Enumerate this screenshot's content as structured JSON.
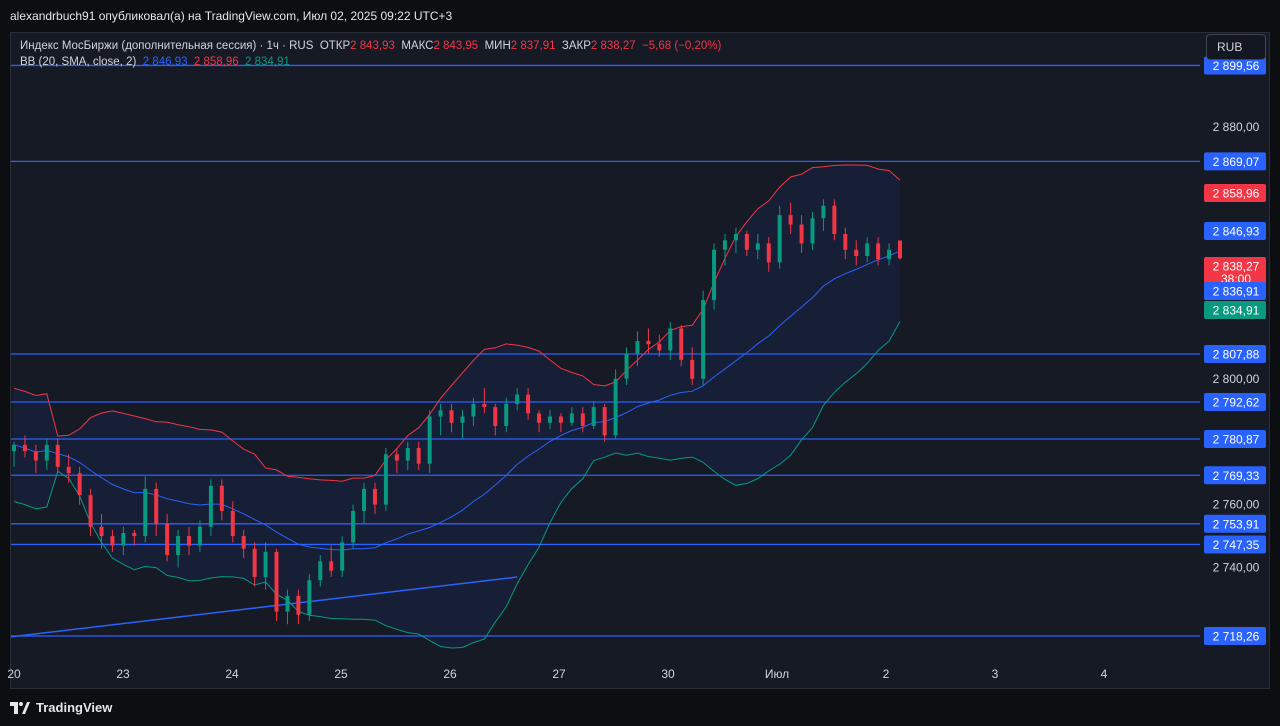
{
  "header": {
    "publisher_line": "alexandrbuch91 опубликовал(а) на TradingView.com, Июл 02, 2025 09:22 UTC+3"
  },
  "legend": {
    "symbol": "Индекс МосБиржи (дополнительная сессия) · 1ч · RUS",
    "open_label": "ОТКР",
    "open_value": "2 843,93",
    "high_label": "МАКС",
    "high_value": "2 843,95",
    "low_label": "МИН",
    "low_value": "2 837,91",
    "close_label": "ЗАКР",
    "close_value": "2 838,27",
    "change_value": "−5,68 (−0,20%)",
    "bb_label": "BB (20, SMA, close, 2)",
    "bb_basis": "2 846,93",
    "bb_upper": "2 858,96",
    "bb_lower": "2 834,91"
  },
  "currency_button": "RUB",
  "footer": {
    "brand": "TradingView"
  },
  "colors": {
    "background": "#161a25",
    "up": "#089981",
    "down": "#f23645",
    "basis": "#2962ff",
    "upper_band": "#f23645",
    "lower_band": "#089981",
    "level_lines": "#2962ff"
  },
  "chart_data": {
    "type": "candlestick",
    "title": "Индекс МосБиржи (дополнительная сессия) · 1ч · RUS",
    "x_tick_labels": [
      "20",
      "23",
      "24",
      "25",
      "26",
      "27",
      "30",
      "Июл",
      "2",
      "3",
      "4"
    ],
    "y_tick_labels": [
      {
        "value": 2880,
        "label": "2 880,00"
      },
      {
        "value": 2800,
        "label": "2 800,00"
      },
      {
        "value": 2760,
        "label": "2 760,00"
      },
      {
        "value": 2740,
        "label": "2 740,00"
      }
    ],
    "ylim": [
      2711,
      2900
    ],
    "horizontal_levels": [
      {
        "value": 2899.56,
        "label": "2 899,56"
      },
      {
        "value": 2869.07,
        "label": "2 869,07"
      },
      {
        "value": 2807.88,
        "label": "2 807,88"
      },
      {
        "value": 2792.62,
        "label": "2 792,62"
      },
      {
        "value": 2780.87,
        "label": "2 780,87"
      },
      {
        "value": 2769.33,
        "label": "2 769,33"
      },
      {
        "value": 2753.91,
        "label": "2 753,91"
      },
      {
        "value": 2747.35,
        "label": "2 747,35"
      },
      {
        "value": 2718.26,
        "label": "2 718,26"
      }
    ],
    "price_badges": [
      {
        "value": 2858.96,
        "label": "2 858,96",
        "color": "#f23645"
      },
      {
        "value": 2846.93,
        "label": "2 846,93",
        "color": "#2962ff"
      },
      {
        "value": 2838.27,
        "label": "2 838,27",
        "sub": "38:00",
        "color": "#f23645"
      },
      {
        "value": 2836.91,
        "label": "2 836,91",
        "color": "#2962ff"
      },
      {
        "value": 2834.91,
        "label": "2 834,91",
        "color": "#089981"
      }
    ],
    "trendline": {
      "from_bar": 0,
      "from_value": 2718,
      "to_bar": 46,
      "to_value": 2737
    },
    "bar_count": 82,
    "candles": [
      [
        2777,
        2780,
        2772,
        2779
      ],
      [
        2779,
        2782,
        2775,
        2777
      ],
      [
        2777,
        2779,
        2770,
        2774
      ],
      [
        2774,
        2781,
        2771,
        2779
      ],
      [
        2779,
        2781,
        2770,
        2772
      ],
      [
        2772,
        2776,
        2767,
        2770
      ],
      [
        2770,
        2772,
        2760,
        2763
      ],
      [
        2763,
        2765,
        2750,
        2753
      ],
      [
        2753,
        2757,
        2746,
        2750
      ],
      [
        2750,
        2752,
        2745,
        2747
      ],
      [
        2747,
        2753,
        2744,
        2751
      ],
      [
        2751,
        2752,
        2747,
        2750
      ],
      [
        2750,
        2769,
        2748,
        2765
      ],
      [
        2765,
        2767,
        2750,
        2754
      ],
      [
        2754,
        2757,
        2742,
        2744
      ],
      [
        2744,
        2752,
        2740,
        2750
      ],
      [
        2750,
        2753,
        2744,
        2747
      ],
      [
        2747,
        2755,
        2745,
        2753
      ],
      [
        2753,
        2768,
        2750,
        2766
      ],
      [
        2766,
        2768,
        2755,
        2758
      ],
      [
        2758,
        2761,
        2748,
        2750
      ],
      [
        2750,
        2752,
        2743,
        2746
      ],
      [
        2746,
        2748,
        2734,
        2737
      ],
      [
        2737,
        2748,
        2733,
        2745
      ],
      [
        2745,
        2746,
        2723,
        2726
      ],
      [
        2726,
        2733,
        2722,
        2731
      ],
      [
        2731,
        2733,
        2722,
        2725
      ],
      [
        2725,
        2738,
        2723,
        2736
      ],
      [
        2736,
        2744,
        2734,
        2742
      ],
      [
        2742,
        2747,
        2737,
        2739
      ],
      [
        2739,
        2750,
        2737,
        2748
      ],
      [
        2748,
        2760,
        2746,
        2758
      ],
      [
        2758,
        2767,
        2754,
        2765
      ],
      [
        2765,
        2767,
        2757,
        2760
      ],
      [
        2760,
        2778,
        2758,
        2776
      ],
      [
        2776,
        2778,
        2770,
        2774
      ],
      [
        2774,
        2780,
        2771,
        2778
      ],
      [
        2778,
        2780,
        2771,
        2773
      ],
      [
        2773,
        2790,
        2770,
        2788
      ],
      [
        2788,
        2792,
        2782,
        2790
      ],
      [
        2790,
        2792,
        2783,
        2786
      ],
      [
        2786,
        2790,
        2781,
        2788
      ],
      [
        2788,
        2794,
        2785,
        2792
      ],
      [
        2792,
        2797,
        2789,
        2791
      ],
      [
        2791,
        2792,
        2782,
        2785
      ],
      [
        2785,
        2794,
        2783,
        2792
      ],
      [
        2792,
        2797,
        2790,
        2795
      ],
      [
        2795,
        2797,
        2787,
        2789
      ],
      [
        2789,
        2790,
        2783,
        2786
      ],
      [
        2786,
        2790,
        2784,
        2788
      ],
      [
        2788,
        2789,
        2783,
        2786
      ],
      [
        2786,
        2791,
        2785,
        2789
      ],
      [
        2789,
        2791,
        2783,
        2785
      ],
      [
        2785,
        2793,
        2784,
        2791
      ],
      [
        2791,
        2792,
        2780,
        2782
      ],
      [
        2782,
        2803,
        2781,
        2800
      ],
      [
        2800,
        2810,
        2798,
        2808
      ],
      [
        2808,
        2815,
        2804,
        2812
      ],
      [
        2812,
        2816,
        2808,
        2811
      ],
      [
        2811,
        2814,
        2807,
        2809
      ],
      [
        2809,
        2818,
        2806,
        2816
      ],
      [
        2816,
        2817,
        2804,
        2806
      ],
      [
        2806,
        2810,
        2798,
        2800
      ],
      [
        2800,
        2828,
        2798,
        2825
      ],
      [
        2825,
        2843,
        2822,
        2841
      ],
      [
        2841,
        2846,
        2836,
        2844
      ],
      [
        2844,
        2848,
        2840,
        2846
      ],
      [
        2846,
        2847,
        2839,
        2841
      ],
      [
        2841,
        2846,
        2838,
        2843
      ],
      [
        2843,
        2845,
        2834,
        2837
      ],
      [
        2837,
        2855,
        2835,
        2852
      ],
      [
        2852,
        2856,
        2846,
        2849
      ],
      [
        2849,
        2852,
        2840,
        2843
      ],
      [
        2843,
        2853,
        2841,
        2851
      ],
      [
        2851,
        2857,
        2847,
        2855
      ],
      [
        2855,
        2857,
        2844,
        2846
      ],
      [
        2846,
        2848,
        2838,
        2841
      ],
      [
        2841,
        2844,
        2836,
        2839
      ],
      [
        2839,
        2845,
        2837,
        2843
      ],
      [
        2843,
        2845,
        2836,
        2838
      ],
      [
        2838,
        2843,
        2836,
        2841
      ],
      [
        2843.93,
        2843.95,
        2837.91,
        2838.27
      ]
    ]
  }
}
